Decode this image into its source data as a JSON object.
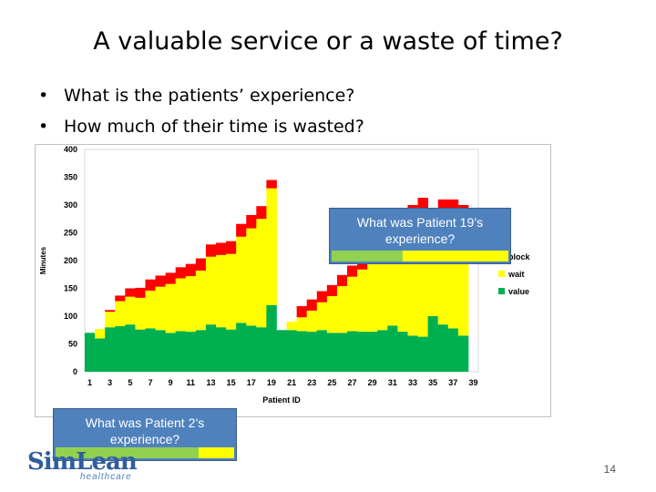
{
  "slide": {
    "title": "A valuable service or a waste of time?",
    "bullets": [
      "What is the patients’ experience?",
      "How much of their time is wasted?"
    ],
    "page_number": "14",
    "logo_main": "SimLean",
    "logo_sub": "healthcare"
  },
  "callouts": {
    "patient19": "What was Patient 19’s experience?",
    "patient2": "What was Patient 2’s experience?",
    "patient19_bar": [
      {
        "part": "value",
        "flex": 1
      },
      {
        "part": "wait",
        "flex": 1.5
      }
    ],
    "patient2_bar": [
      {
        "part": "value",
        "flex": 3.2
      },
      {
        "part": "wait",
        "flex": 0.8
      }
    ]
  },
  "chart_data": {
    "type": "bar",
    "stacked": true,
    "xlabel": "Patient ID",
    "ylabel": "Minutes",
    "ylim": [
      0,
      400
    ],
    "yticks": [
      0,
      50,
      100,
      150,
      200,
      250,
      300,
      350,
      400
    ],
    "xtick_labels": [
      "1",
      "3",
      "5",
      "7",
      "9",
      "11",
      "13",
      "15",
      "17",
      "19",
      "21",
      "23",
      "25",
      "27",
      "29",
      "31",
      "33",
      "35",
      "37",
      "39"
    ],
    "x": [
      1,
      2,
      3,
      4,
      5,
      6,
      7,
      8,
      9,
      10,
      11,
      12,
      13,
      14,
      15,
      16,
      17,
      18,
      19,
      20,
      21,
      22,
      23,
      24,
      25,
      26,
      27,
      28,
      29,
      30,
      31,
      32,
      33,
      34,
      35,
      36,
      37,
      38,
      39
    ],
    "legend_position": "right",
    "colors": {
      "block": "#ff0000",
      "wait": "#ffff00",
      "value": "#00b050"
    },
    "series": [
      {
        "name": "block",
        "values": [
          0,
          0,
          3,
          10,
          15,
          18,
          20,
          20,
          20,
          20,
          22,
          22,
          22,
          22,
          23,
          23,
          24,
          23,
          15,
          0,
          0,
          20,
          20,
          20,
          20,
          20,
          20,
          20,
          20,
          20,
          20,
          20,
          20,
          20,
          20,
          20,
          20,
          20,
          0
        ]
      },
      {
        "name": "wait",
        "values": [
          0,
          17,
          28,
          45,
          50,
          57,
          68,
          78,
          88,
          95,
          100,
          107,
          122,
          130,
          136,
          155,
          175,
          195,
          210,
          0,
          15,
          25,
          38,
          50,
          66,
          84,
          98,
          112,
          125,
          140,
          170,
          200,
          215,
          230,
          160,
          205,
          212,
          215,
          0
        ]
      },
      {
        "name": "value",
        "values": [
          70,
          60,
          80,
          82,
          85,
          76,
          78,
          75,
          70,
          73,
          72,
          75,
          85,
          80,
          76,
          88,
          83,
          80,
          120,
          75,
          75,
          73,
          72,
          75,
          70,
          70,
          73,
          72,
          72,
          75,
          83,
          72,
          65,
          63,
          100,
          85,
          78,
          65,
          0
        ]
      }
    ]
  }
}
